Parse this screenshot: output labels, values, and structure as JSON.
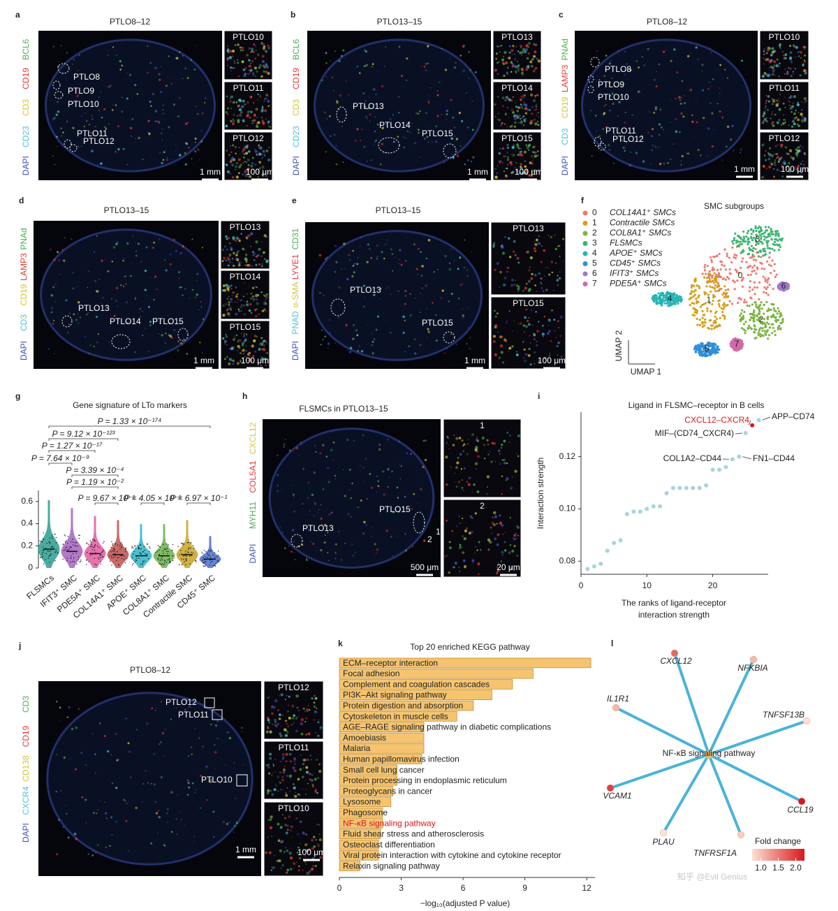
{
  "panels": [
    {
      "letter": "a",
      "title": "PTLO8–12",
      "channels": [
        {
          "name": "BCL6",
          "color": "#4caf50"
        },
        {
          "name": "CD19",
          "color": "#e53935"
        },
        {
          "name": "CD3",
          "color": "#d4c53a"
        },
        {
          "name": "CD23",
          "color": "#4fc3d9"
        },
        {
          "name": "DAPI",
          "color": "#3f51b5"
        }
      ],
      "regions": [
        "PTLO8",
        "PTLO9",
        "PTLO10",
        "PTLO11",
        "PTLO12"
      ],
      "insets": [
        "PTLO10",
        "PTLO11",
        "PTLO12"
      ],
      "scale_bars": [
        "1 mm",
        "100 μm"
      ]
    },
    {
      "letter": "b",
      "title": "PTLO13–15",
      "channels": [
        {
          "name": "BCL6",
          "color": "#4caf50"
        },
        {
          "name": "CD19",
          "color": "#e53935"
        },
        {
          "name": "CD3",
          "color": "#d4c53a"
        },
        {
          "name": "CD23",
          "color": "#4fc3d9"
        },
        {
          "name": "DAPI",
          "color": "#3f51b5"
        }
      ],
      "regions": [
        "PTLO13",
        "PTLO14",
        "PTLO15"
      ],
      "insets": [
        "PTLO13",
        "PTLO14",
        "PTLO15"
      ],
      "scale_bars": [
        "1 mm",
        "100 μm"
      ]
    },
    {
      "letter": "c",
      "title": "PTLO8–12",
      "channels": [
        {
          "name": "PNAd",
          "color": "#4caf50"
        },
        {
          "name": "LAMP3",
          "color": "#e53935"
        },
        {
          "name": "CD19",
          "color": "#d4c53a"
        },
        {
          "name": "CD3",
          "color": "#4fc3d9"
        },
        {
          "name": "DAPI",
          "color": "#3f51b5"
        }
      ],
      "regions": [
        "PTLO8",
        "PTLO9",
        "PTLO10",
        "PTLO11",
        "PTLO12"
      ],
      "insets": [
        "PTLO10",
        "PTLO11",
        "PTLO12"
      ],
      "scale_bars": [
        "1 mm",
        "100 μm"
      ]
    },
    {
      "letter": "d",
      "title": "PTLO13–15",
      "channels": [
        {
          "name": "PNAd",
          "color": "#4caf50"
        },
        {
          "name": "LAMP3",
          "color": "#e53935"
        },
        {
          "name": "CD19",
          "color": "#d4c53a"
        },
        {
          "name": "CD3",
          "color": "#4fc3d9"
        },
        {
          "name": "DAPI",
          "color": "#3f51b5"
        }
      ],
      "regions": [
        "PTLO13",
        "PTLO14",
        "PTLO15"
      ],
      "insets": [
        "PTLO13",
        "PTLO14",
        "PTLO15"
      ],
      "scale_bars": [
        "1 mm",
        "100 μm"
      ]
    },
    {
      "letter": "e",
      "title": "PTLO13–15",
      "channels": [
        {
          "name": "CD31",
          "color": "#4caf50"
        },
        {
          "name": "LYVE1",
          "color": "#e53935"
        },
        {
          "name": "α-SMA",
          "color": "#d4c53a"
        },
        {
          "name": "PNAD",
          "color": "#4fc3d9"
        },
        {
          "name": "DAPI",
          "color": "#3f51b5"
        }
      ],
      "regions": [
        "PTLO13",
        "PTLO15"
      ],
      "insets": [
        "PTLO13",
        "PTLO15"
      ],
      "scale_bars": [
        "1 mm",
        "100 μm"
      ]
    },
    {
      "letter": "h",
      "title": "FLSMCs in PTLO13–15",
      "channels": [
        {
          "name": "CXCL12",
          "color": "#d4c53a"
        },
        {
          "name": "COL5A1",
          "color": "#e53935"
        },
        {
          "name": "MYH11",
          "color": "#4caf50"
        },
        {
          "name": "DAPI",
          "color": "#3f51b5"
        }
      ],
      "regions": [
        "PTLO13",
        "PTLO15",
        "1",
        "2"
      ],
      "insets": [
        "1",
        "2"
      ],
      "scale_bars": [
        "500 μm",
        "20 μm"
      ]
    },
    {
      "letter": "j",
      "title": "PTLO8–12",
      "channels": [
        {
          "name": "CD3",
          "color": "#4caf50"
        },
        {
          "name": "CD19",
          "color": "#e53935"
        },
        {
          "name": "CD138",
          "color": "#d4c53a"
        },
        {
          "name": "CXCR4",
          "color": "#4fc3d9"
        },
        {
          "name": "DAPI",
          "color": "#3f51b5"
        }
      ],
      "regions": [
        "PTLO12",
        "PTLO11",
        "PTLO10"
      ],
      "insets": [
        "PTLO12",
        "PTLO11",
        "PTLO10"
      ],
      "scale_bars": [
        "1 mm",
        "100 μm"
      ]
    }
  ],
  "umap": {
    "letter": "f",
    "title": "SMC subgroups",
    "clusters": [
      {
        "id": "0",
        "name": "COL14A1⁺ SMCs",
        "color": "#ee7a6d"
      },
      {
        "id": "1",
        "name": "Contractile SMCs",
        "color": "#d4a017"
      },
      {
        "id": "2",
        "name": "COL8A1⁺ SMCs",
        "color": "#7cb342"
      },
      {
        "id": "3",
        "name": "FLSMCs",
        "color": "#3cb371"
      },
      {
        "id": "4",
        "name": "APOE⁺ SMCs",
        "color": "#26b5b5"
      },
      {
        "id": "5",
        "name": "CD45⁺ SMCs",
        "color": "#2f8fd6"
      },
      {
        "id": "6",
        "name": "IFIT3⁺ SMCs",
        "color": "#9c7bc5"
      },
      {
        "id": "7",
        "name": "PDE5A⁺ SMCs",
        "color": "#d06aa7"
      }
    ],
    "axis_labels": [
      "UMAP 2",
      "UMAP 1"
    ]
  },
  "chart_data": [
    {
      "type": "violin",
      "letter": "g",
      "title": "Gene signature of LTo markers",
      "categories": [
        "FLSMCs",
        "IFIT3⁺ SMC",
        "PDE5A⁺ SMC",
        "COL14A1⁺ SMC",
        "APOE⁺ SMC",
        "COL8A1⁺ SMC",
        "Contractile SMC",
        "CD45⁺ SMC"
      ],
      "values": [
        0.17,
        0.15,
        0.13,
        0.12,
        0.11,
        0.11,
        0.12,
        0.08
      ],
      "colors": [
        "#2a9d8f",
        "#a463c0",
        "#e05aa0",
        "#c0504d",
        "#2bb5c9",
        "#6ab04c",
        "#c9a227",
        "#4a6fd1"
      ],
      "ylim": [
        0,
        0.7
      ],
      "yticks": [
        0,
        0.2,
        0.4,
        0.6
      ],
      "comparisons": [
        "P = 1.33 × 10⁻¹⁷⁴",
        "P = 9.12 × 10⁻¹²³",
        "P = 1.27 × 10⁻¹⁷",
        "P = 7.64 × 10⁻⁹",
        "P = 3.39 × 10⁻⁴",
        "P = 1.19 × 10⁻²",
        "P = 9.67 × 10⁻¹",
        "P = 4.05 × 10⁻¹",
        "P = 6.97 × 10⁻¹"
      ]
    },
    {
      "type": "scatter",
      "letter": "i",
      "title": "Ligand in FLSMC–receptor in B cells",
      "x": [
        1,
        2,
        3,
        4,
        5,
        6,
        7,
        8,
        9,
        10,
        11,
        12,
        13,
        14,
        15,
        16,
        17,
        18,
        19,
        20,
        21,
        22,
        23,
        24,
        25,
        26,
        27
      ],
      "values": [
        0.077,
        0.078,
        0.079,
        0.084,
        0.087,
        0.088,
        0.098,
        0.099,
        0.099,
        0.1,
        0.101,
        0.101,
        0.106,
        0.108,
        0.108,
        0.108,
        0.108,
        0.108,
        0.109,
        0.115,
        0.115,
        0.116,
        0.119,
        0.12,
        0.129,
        0.132,
        0.134
      ],
      "color": "#a8d4dc",
      "colors": [
        "#a8d4dc",
        "#a8d4dc",
        "#a8d4dc",
        "#a8d4dc",
        "#a8d4dc",
        "#a8d4dc",
        "#a8d4dc",
        "#a8d4dc",
        "#a8d4dc",
        "#a8d4dc",
        "#a8d4dc",
        "#a8d4dc",
        "#a8d4dc",
        "#a8d4dc",
        "#a8d4dc",
        "#a8d4dc",
        "#a8d4dc",
        "#a8d4dc",
        "#a8d4dc",
        "#a8d4dc",
        "#a8d4dc",
        "#a8d4dc",
        "#a8d4dc",
        "#a8d4dc",
        "#a8d4dc",
        "#d7191c",
        "#a8d4dc"
      ],
      "point_labels": [
        null,
        null,
        null,
        null,
        null,
        null,
        null,
        null,
        null,
        null,
        null,
        null,
        null,
        null,
        null,
        null,
        null,
        null,
        null,
        null,
        null,
        null,
        "COL1A2–CD44",
        "FN1–CD44",
        "MIF–(CD74_CXCR4)",
        "CXCL12–CXCR4",
        "APP–CD74"
      ],
      "xlim": [
        0,
        28
      ],
      "xticks": [
        0,
        10,
        20
      ],
      "ylim": [
        0.075,
        0.137
      ],
      "yticks": [
        0.08,
        {
          "value": 0.1,
          "label": "0.10"
        },
        0.12
      ],
      "ylabel": "Interaction strength",
      "xlabel": [
        "The ranks of ligand-receptor",
        "interaction strength"
      ]
    },
    {
      "type": "bar",
      "orientation": "horizontal",
      "letter": "k",
      "title": "Top 20 enriched KEGG pathway",
      "categories": [
        "ECM–receptor interaction",
        "Focal adhesion",
        "Complement and coagulation cascades",
        "PI3K–Akt signaling pathway",
        "Protein digestion and absorption",
        "Cytoskeleton in muscle cells",
        "AGE–RAGE signaling pathway in diabetic complications",
        "Amoebiasis",
        "Malaria",
        "Human papillomavirus infection",
        "Small cell lung cancer",
        "Protein processing in endoplasmic reticulum",
        "Proteoglycans in cancer",
        "Lysosome",
        "Phagosome",
        "NF-κB signaling pathway",
        "Fluid shear stress and atherosclerosis",
        "Osteoclast differentiation",
        "Viral protein interaction with cytokine and cytokine receptor",
        "Relaxin signaling pathway"
      ],
      "values": [
        12.2,
        9.4,
        8.4,
        7.4,
        6.5,
        5.7,
        4.1,
        4.1,
        4.1,
        4.0,
        2.8,
        2.8,
        2.6,
        2.5,
        2.1,
        2.1,
        2.0,
        1.9,
        1.9,
        1.0
      ],
      "color": "#f6c46f",
      "category_colors": [
        "#222",
        "#222",
        "#222",
        "#222",
        "#222",
        "#222",
        "#222",
        "#222",
        "#222",
        "#222",
        "#222",
        "#222",
        "#222",
        "#222",
        "#222",
        "#d7191c",
        "#222",
        "#222",
        "#222",
        "#222"
      ],
      "xlim": [
        0,
        12.4
      ],
      "xticks": [
        0,
        3,
        6,
        9,
        12
      ],
      "xlabel": "−log₁₀(adjusted P value)"
    },
    {
      "type": "network",
      "letter": "l",
      "center": "NF-κB signaling pathway",
      "nodes": [
        {
          "name": "CXCL12",
          "value": 1.6
        },
        {
          "name": "NFKBIA",
          "value": 1.2
        },
        {
          "name": "IL1R1",
          "value": 1.2
        },
        {
          "name": "TNFSF13B",
          "value": 1.0
        },
        {
          "name": "VCAM1",
          "value": 1.8
        },
        {
          "name": "CCL19",
          "value": 2.0
        },
        {
          "name": "PLAU",
          "value": 1.0
        },
        {
          "name": "TNFRSF1A",
          "value": 1.1
        }
      ],
      "colorbar": {
        "title": "Fold change",
        "lim": [
          0.75,
          2.25
        ],
        "ticks": [
          {
            "value": 1,
            "label": "1.0"
          },
          1.5,
          {
            "value": 2,
            "label": "2.0"
          }
        ]
      }
    }
  ],
  "watermark": "知乎 @Evil Genius"
}
